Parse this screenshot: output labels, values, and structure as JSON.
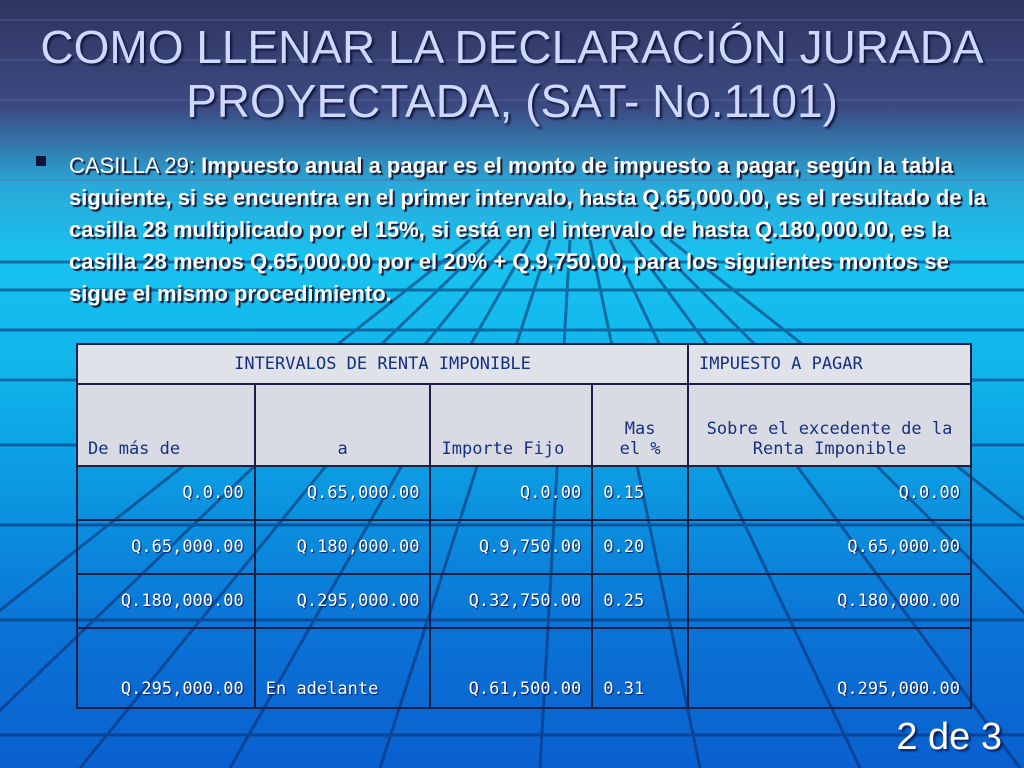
{
  "slide": {
    "title": "COMO LLENAR LA DECLARACIÓN JURADA PROYECTADA, (SAT- No.1101)",
    "bullet_lead": "CASILLA 29:",
    "bullet_text": "Impuesto anual a pagar es el monto de impuesto a pagar, según la tabla siguiente, si se encuentra en el primer intervalo, hasta Q.65,000.00, es el resultado de la casilla 28 multiplicado por el 15%, si está en el intervalo de hasta Q.180,000.00, es la casilla 28 menos Q.65,000.00 por el 20% + Q.9,750.00, para los siguientes montos se sigue el mismo procedimiento.",
    "page_number": "2 de 3"
  },
  "table": {
    "group_header_left": "INTERVALOS DE RENTA IMPONIBLE",
    "group_header_right": "IMPUESTO A PAGAR",
    "columns": [
      "De más de",
      "a",
      "Importe Fijo",
      "Mas   el %",
      "Sobre el excedente de la Renta Imponible"
    ],
    "rows": [
      [
        "Q.0.00",
        "Q.65,000.00",
        "Q.0.00",
        "0.15",
        "Q.0.00"
      ],
      [
        "Q.65,000.00",
        "Q.180,000.00",
        "Q.9,750.00",
        "0.20",
        "Q.65,000.00"
      ],
      [
        "Q.180,000.00",
        "Q.295,000.00",
        "Q.32,750.00",
        "0.25",
        "Q.180,000.00"
      ],
      [
        "Q.295,000.00",
        "En adelante",
        "Q.61,500.00",
        "0.31",
        "Q.295,000.00"
      ]
    ]
  }
}
